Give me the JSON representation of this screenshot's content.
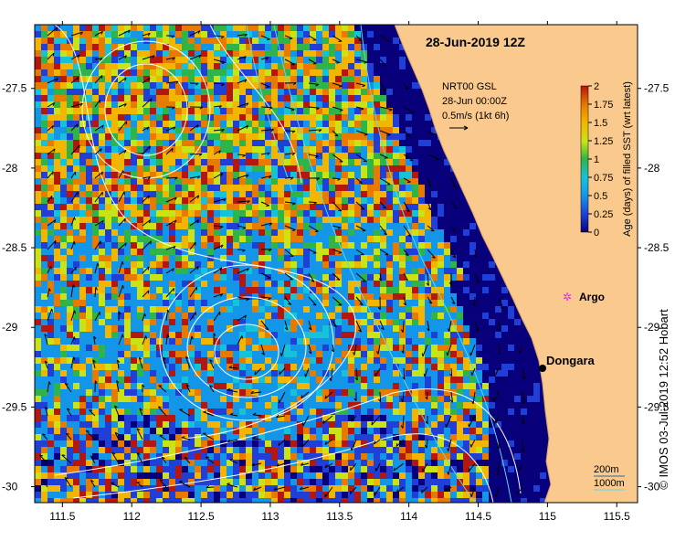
{
  "title": "28-Jun-2019 12Z",
  "current_legend": {
    "line1": "NRT00 GSL",
    "line2": "28-Jun 00:00Z",
    "line3": "0.5m/s (1kt 6h)"
  },
  "colorbar": {
    "label": "Age (days) of filled SST (wrt latest)",
    "ticks": [
      "2",
      "1.75",
      "1.5",
      "1.25",
      "1",
      "0.75",
      "0.5",
      "0.25",
      "0"
    ],
    "colors": [
      "#08007a",
      "#1f3fd6",
      "#1496e8",
      "#16c2d8",
      "#2fb44a",
      "#c9e316",
      "#f3b600",
      "#e87a00",
      "#b5160d"
    ]
  },
  "markers": {
    "argo": "Argo",
    "dongara": "Dongara"
  },
  "depth_legend": {
    "shallow": "200m",
    "deep": "1000m"
  },
  "credit": "© IMOS 03-Jul-2019 12:52 Hobart",
  "axes": {
    "x_ticks": [
      "111.5",
      "112",
      "112.5",
      "113",
      "113.5",
      "114",
      "114.5",
      "115",
      "115.5"
    ],
    "y_ticks": [
      "-27.5",
      "-28",
      "-28.5",
      "-29",
      "-29.5",
      "-30"
    ],
    "x_range": [
      111.3,
      115.65
    ],
    "y_range": [
      -30.1,
      -27.1
    ]
  },
  "colors": {
    "land": "#fac98d",
    "deep_ocean": "#08007a",
    "contour": "#ffffff",
    "isobath": "#5fd7e8",
    "argo_marker": "#e030e0",
    "dongara_marker": "#000000"
  }
}
